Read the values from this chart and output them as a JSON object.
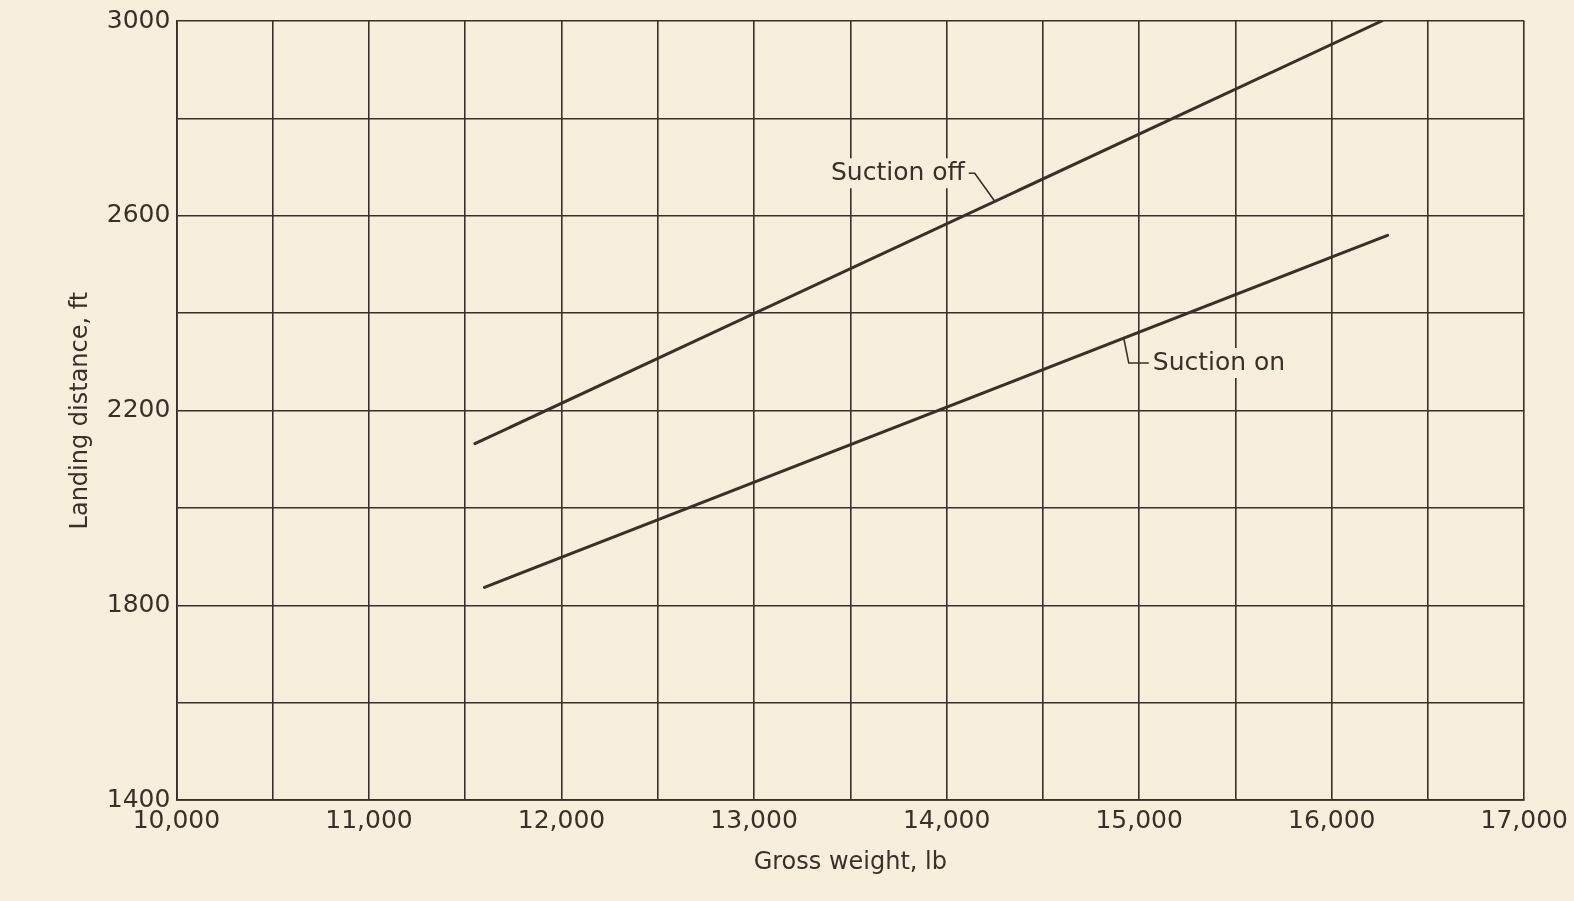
{
  "chart_data": {
    "type": "line",
    "xlabel": "Gross weight, lb",
    "ylabel": "Landing distance, ft",
    "xlim": [
      10000,
      17000
    ],
    "ylim": [
      1400,
      3000
    ],
    "xticks": [
      {
        "value": 10000,
        "label": "10,000"
      },
      {
        "value": 10500,
        "label": null
      },
      {
        "value": 11000,
        "label": "11,000"
      },
      {
        "value": 11500,
        "label": null
      },
      {
        "value": 12000,
        "label": "12,000"
      },
      {
        "value": 12500,
        "label": null
      },
      {
        "value": 13000,
        "label": "13,000"
      },
      {
        "value": 13500,
        "label": null
      },
      {
        "value": 14000,
        "label": "14,000"
      },
      {
        "value": 14500,
        "label": null
      },
      {
        "value": 15000,
        "label": "15,000"
      },
      {
        "value": 15500,
        "label": null
      },
      {
        "value": 16000,
        "label": "16,000"
      },
      {
        "value": 16500,
        "label": null
      },
      {
        "value": 17000,
        "label": "17,000"
      }
    ],
    "yticks": [
      1400,
      {
        "value": 1600,
        "label": null
      },
      1800,
      {
        "value": 2000,
        "label": null
      },
      2200,
      {
        "value": 2400,
        "label": null
      },
      2600,
      {
        "value": 2800,
        "label": null
      },
      3000
    ],
    "grid": true,
    "legend": false,
    "marker": "none",
    "line_style": "solid",
    "series": [
      {
        "color": "#3a2f2a",
        "x": [
          11550,
          16260
        ],
        "values": [
          2132,
          3000
        ]
      },
      {
        "color": "#3a2f2a",
        "x": [
          11600,
          16290
        ],
        "values": [
          1837,
          2560
        ]
      }
    ],
    "annotations": [
      {
        "text": "Suction off",
        "x": 14250,
        "y": 2630
      },
      {
        "text": "Suction on",
        "x": 14920,
        "y": 2349
      }
    ]
  }
}
